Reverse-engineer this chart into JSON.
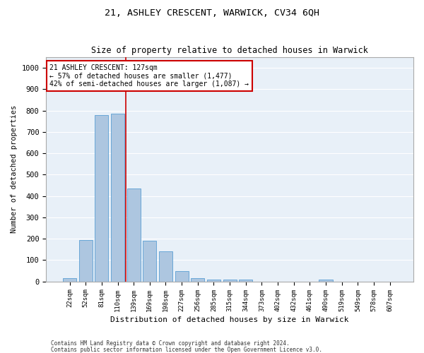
{
  "title1": "21, ASHLEY CRESCENT, WARWICK, CV34 6QH",
  "title2": "Size of property relative to detached houses in Warwick",
  "xlabel": "Distribution of detached houses by size in Warwick",
  "ylabel": "Number of detached properties",
  "categories": [
    "22sqm",
    "52sqm",
    "81sqm",
    "110sqm",
    "139sqm",
    "169sqm",
    "198sqm",
    "227sqm",
    "256sqm",
    "285sqm",
    "315sqm",
    "344sqm",
    "373sqm",
    "402sqm",
    "432sqm",
    "461sqm",
    "490sqm",
    "519sqm",
    "549sqm",
    "578sqm",
    "607sqm"
  ],
  "values": [
    15,
    195,
    780,
    785,
    435,
    190,
    140,
    48,
    15,
    10,
    10,
    10,
    0,
    0,
    0,
    0,
    10,
    0,
    0,
    0,
    0
  ],
  "bar_color": "#adc6e0",
  "bar_edge_color": "#5a9fd4",
  "background_color": "#e8f0f8",
  "grid_color": "#ffffff",
  "vline_color": "#cc0000",
  "annotation_text": "21 ASHLEY CRESCENT: 127sqm\n← 57% of detached houses are smaller (1,477)\n42% of semi-detached houses are larger (1,087) →",
  "annotation_box_color": "#ffffff",
  "annotation_box_edge": "#cc0000",
  "footer1": "Contains HM Land Registry data © Crown copyright and database right 2024.",
  "footer2": "Contains public sector information licensed under the Open Government Licence v3.0.",
  "ylim": [
    0,
    1050
  ],
  "yticks": [
    0,
    100,
    200,
    300,
    400,
    500,
    600,
    700,
    800,
    900,
    1000
  ]
}
